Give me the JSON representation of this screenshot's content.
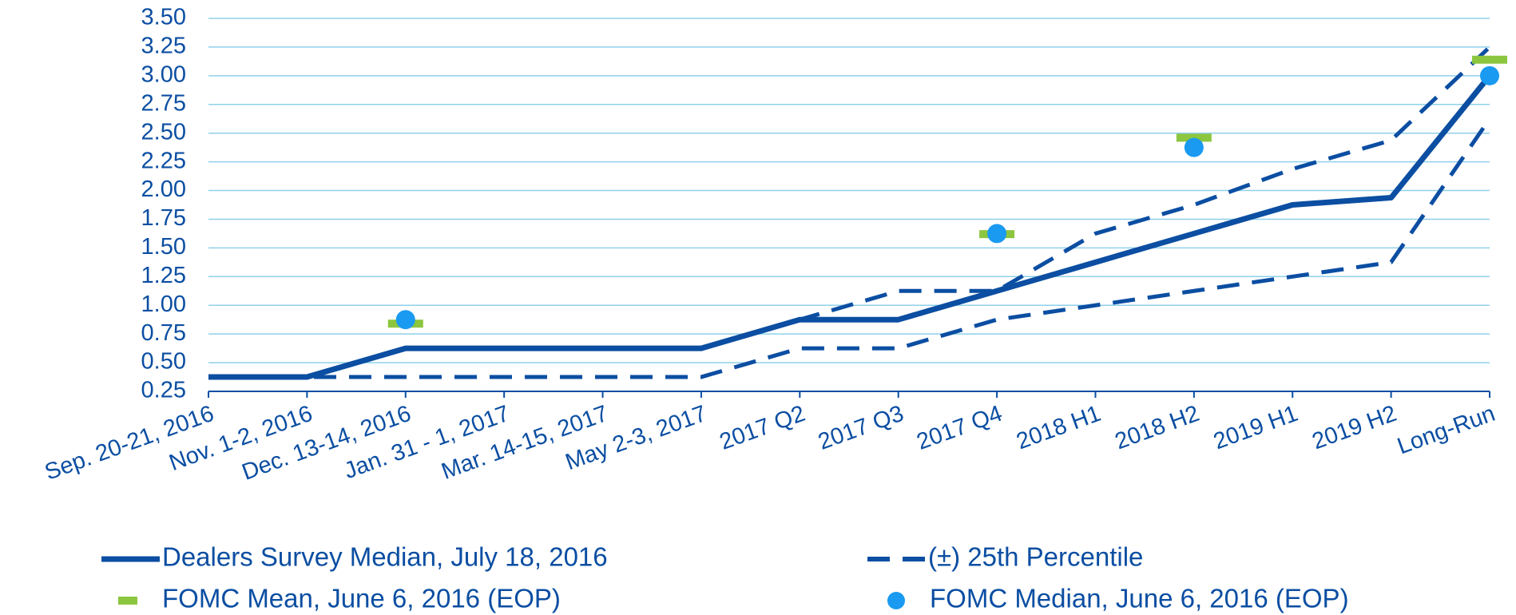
{
  "chart_data": {
    "type": "line",
    "categories": [
      "Sep. 20-21, 2016",
      "Nov. 1-2, 2016",
      "Dec. 13-14, 2016",
      "Jan. 31 - 1, 2017",
      "Mar. 14-15, 2017",
      "May 2-3, 2017",
      "2017 Q2",
      "2017 Q3",
      "2017 Q4",
      "2018 H1",
      "2018 H2",
      "2019 H1",
      "2019 H2",
      "Long-Run"
    ],
    "series": [
      {
        "name": "Dealers Survey Median, July 18, 2016",
        "color": "#0b4ea2",
        "style": "solid",
        "values": [
          0.375,
          0.375,
          0.625,
          0.625,
          0.625,
          0.625,
          0.875,
          0.875,
          1.125,
          1.375,
          1.625,
          1.875,
          1.9375,
          3.0
        ]
      },
      {
        "name": "(±) 25th Percentile",
        "color": "#0b4ea2",
        "style": "dashed",
        "upper": [
          0.375,
          0.375,
          0.625,
          0.625,
          0.625,
          0.625,
          0.875,
          1.125,
          1.125,
          1.625,
          1.875,
          2.1875,
          2.4375,
          3.25
        ],
        "lower": [
          0.375,
          0.375,
          0.375,
          0.375,
          0.375,
          0.375,
          0.625,
          0.625,
          0.875,
          1.0,
          1.125,
          1.25,
          1.375,
          2.625
        ]
      },
      {
        "name": "FOMC Mean, June 6, 2016 (EOP)",
        "color": "#8cc63f",
        "style": "dash-marker",
        "values": [
          null,
          null,
          0.84,
          null,
          null,
          null,
          null,
          null,
          1.62,
          null,
          2.46,
          null,
          null,
          3.14
        ]
      },
      {
        "name": "FOMC Median, June 6, 2016 (EOP)",
        "color": "#1a9af0",
        "style": "dot",
        "values": [
          null,
          null,
          0.875,
          null,
          null,
          null,
          null,
          null,
          1.625,
          null,
          2.375,
          null,
          null,
          3.0
        ]
      }
    ],
    "ylim": [
      0.25,
      3.5
    ],
    "yticks": [
      {
        "value": 0.25,
        "label": "0.25"
      },
      {
        "value": 0.5,
        "label": "0.50"
      },
      {
        "value": 0.75,
        "label": "0.75"
      },
      {
        "value": 1.0,
        "label": "1.00"
      },
      {
        "value": 1.25,
        "label": "1.25"
      },
      {
        "value": 1.5,
        "label": "1.50"
      },
      {
        "value": 1.75,
        "label": "1.75"
      },
      {
        "value": 2.0,
        "label": "2.00"
      },
      {
        "value": 2.25,
        "label": "2.25"
      },
      {
        "value": 2.5,
        "label": "2.50"
      },
      {
        "value": 2.75,
        "label": "2.75"
      },
      {
        "value": 3.0,
        "label": "3.00"
      },
      {
        "value": 3.25,
        "label": "3.25"
      },
      {
        "value": 3.5,
        "label": "3.50"
      }
    ],
    "grid": true,
    "legend": "bottom"
  }
}
